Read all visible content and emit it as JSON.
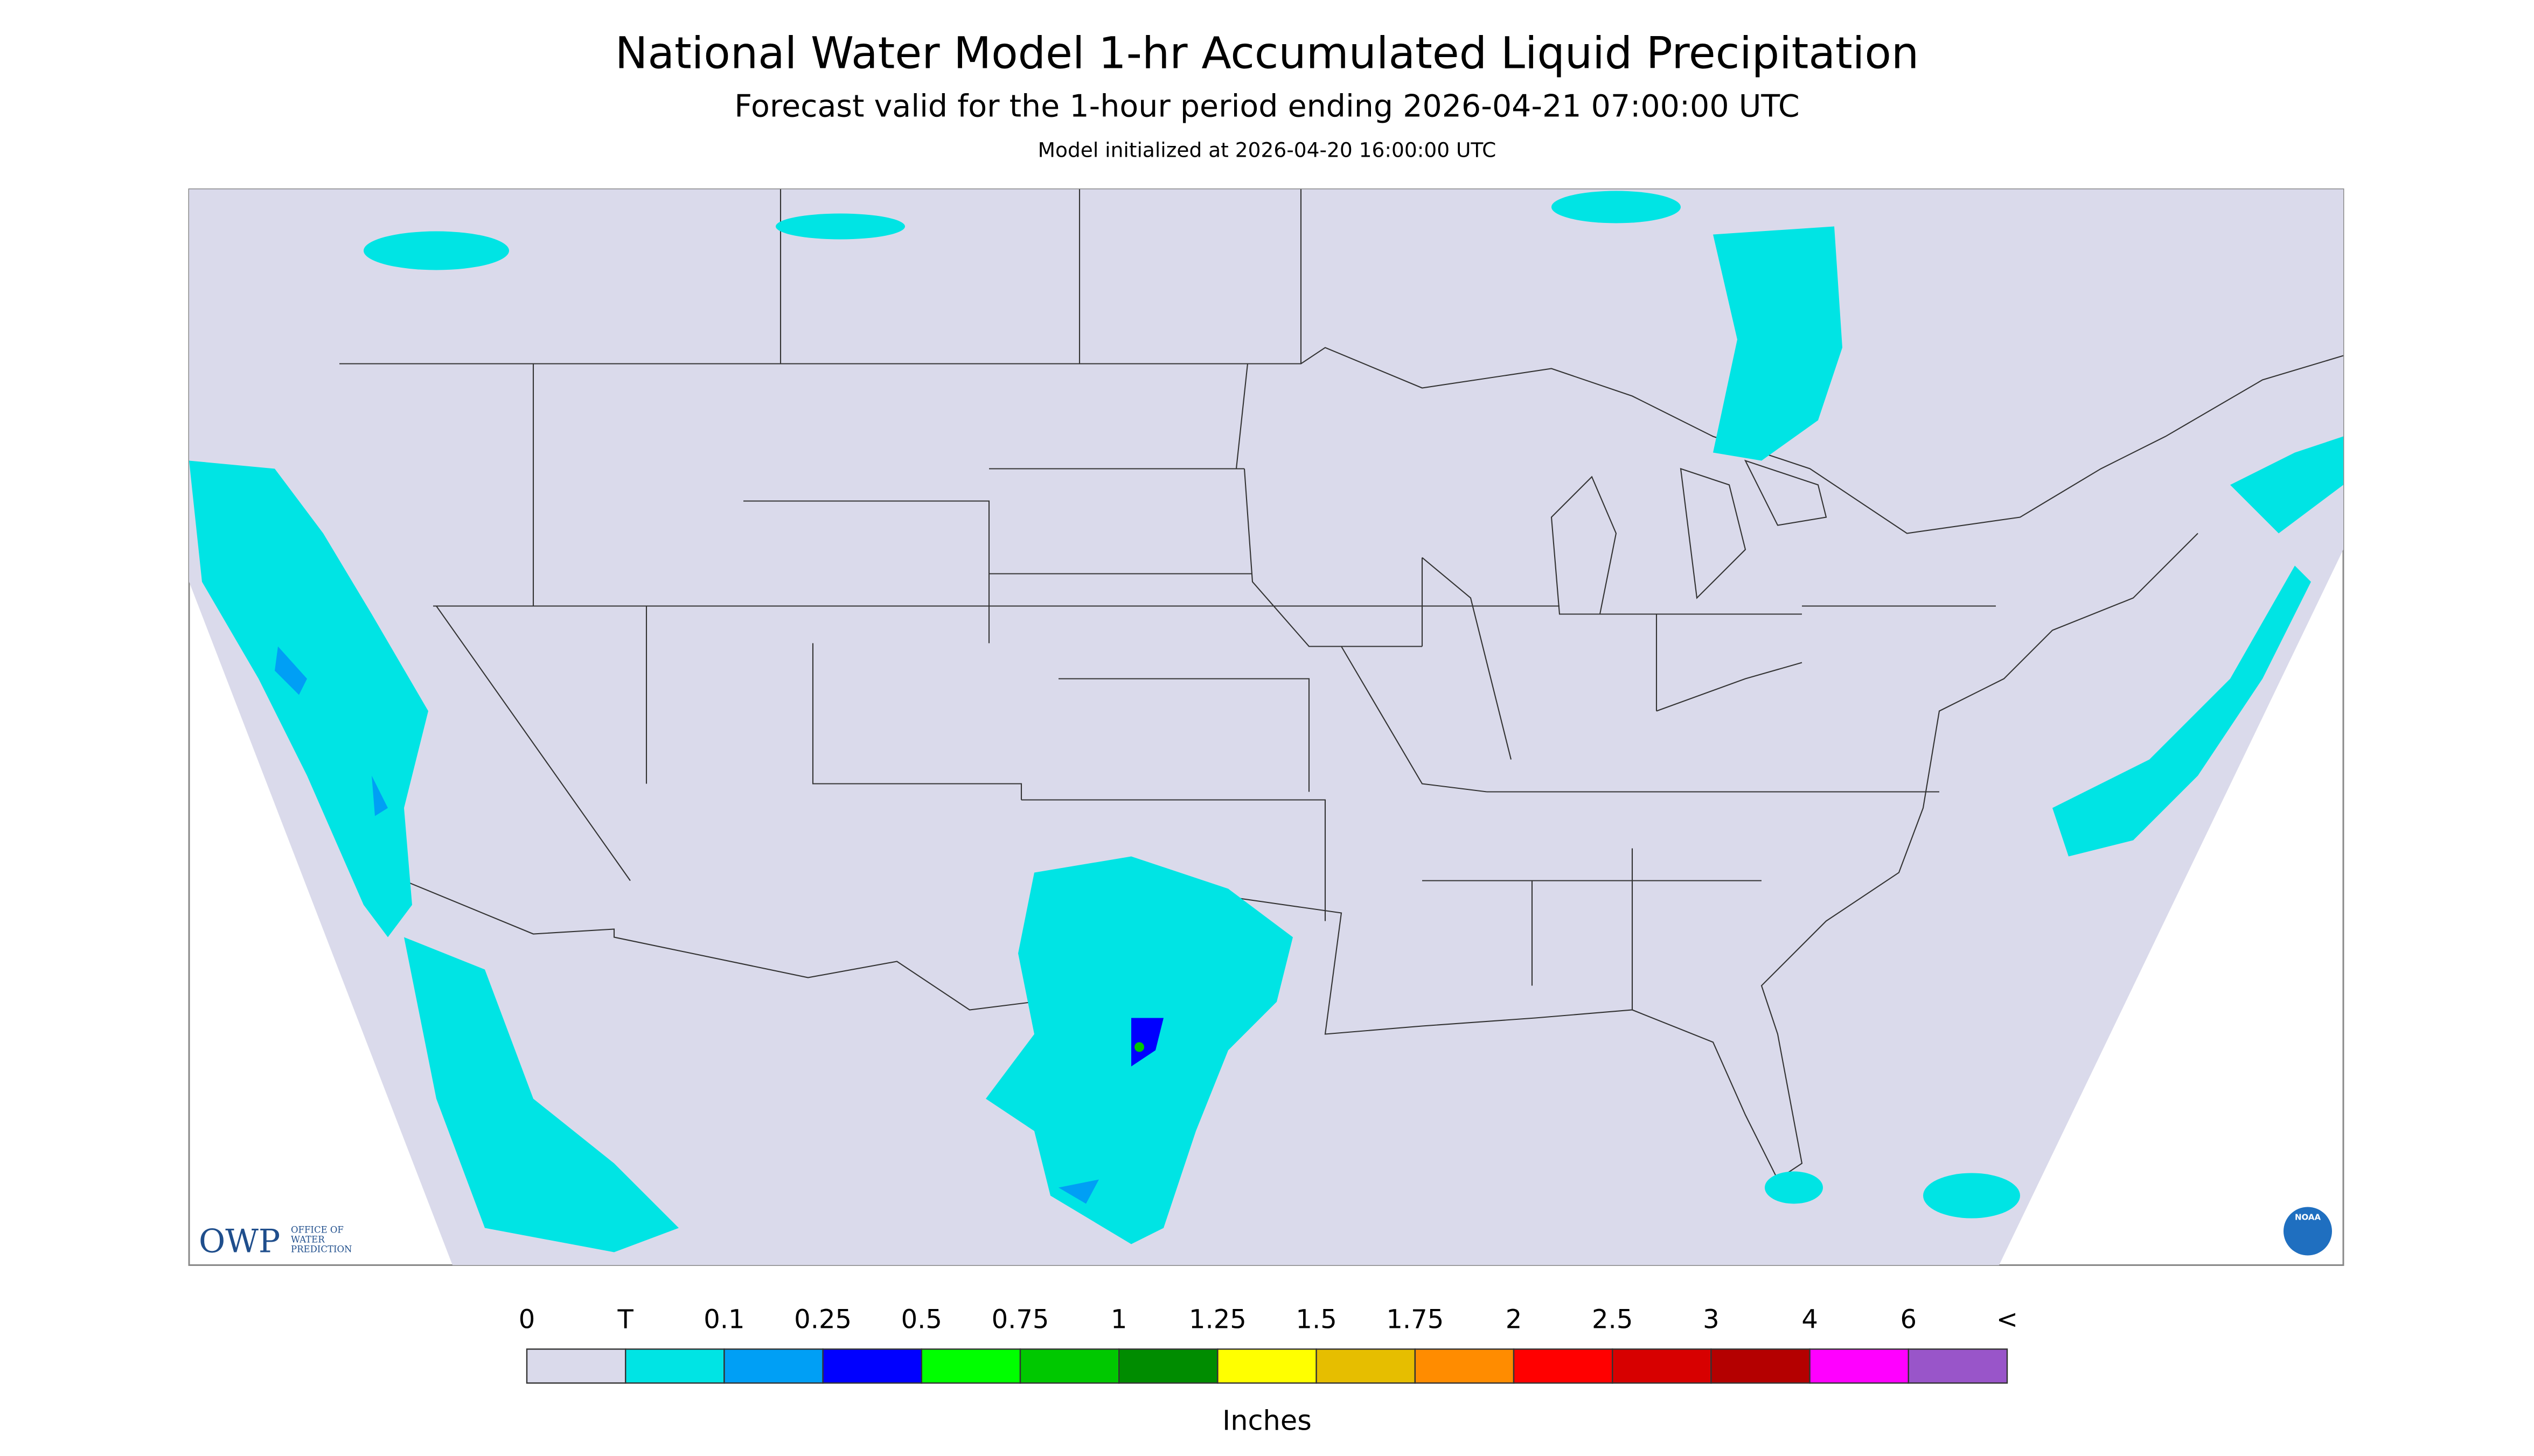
{
  "header": {
    "title": "National Water Model 1-hr Accumulated Liquid Precipitation",
    "subtitle": "Forecast valid for the 1-hour period ending 2026-04-21 07:00:00 UTC",
    "init": "Model initialized at 2026-04-20 16:00:00 UTC"
  },
  "legend": {
    "labels": [
      "0",
      "T",
      "0.1",
      "0.25",
      "0.5",
      "0.75",
      "1",
      "1.25",
      "1.5",
      "1.75",
      "2",
      "2.5",
      "3",
      "4",
      "6",
      "<"
    ],
    "colors": [
      "#dadaeb",
      "#00e4e4",
      "#009ff5",
      "#0000ff",
      "#00ff00",
      "#00c800",
      "#008c00",
      "#ffff00",
      "#e6be00",
      "#ff8c00",
      "#ff0000",
      "#d70000",
      "#b40000",
      "#ff00ff",
      "#9955c9"
    ],
    "unit": "Inches"
  },
  "logo": {
    "text": "OWP",
    "lines": [
      "OFFICE OF",
      "WATER",
      "PREDICTION"
    ]
  },
  "badge": "NOAA"
}
